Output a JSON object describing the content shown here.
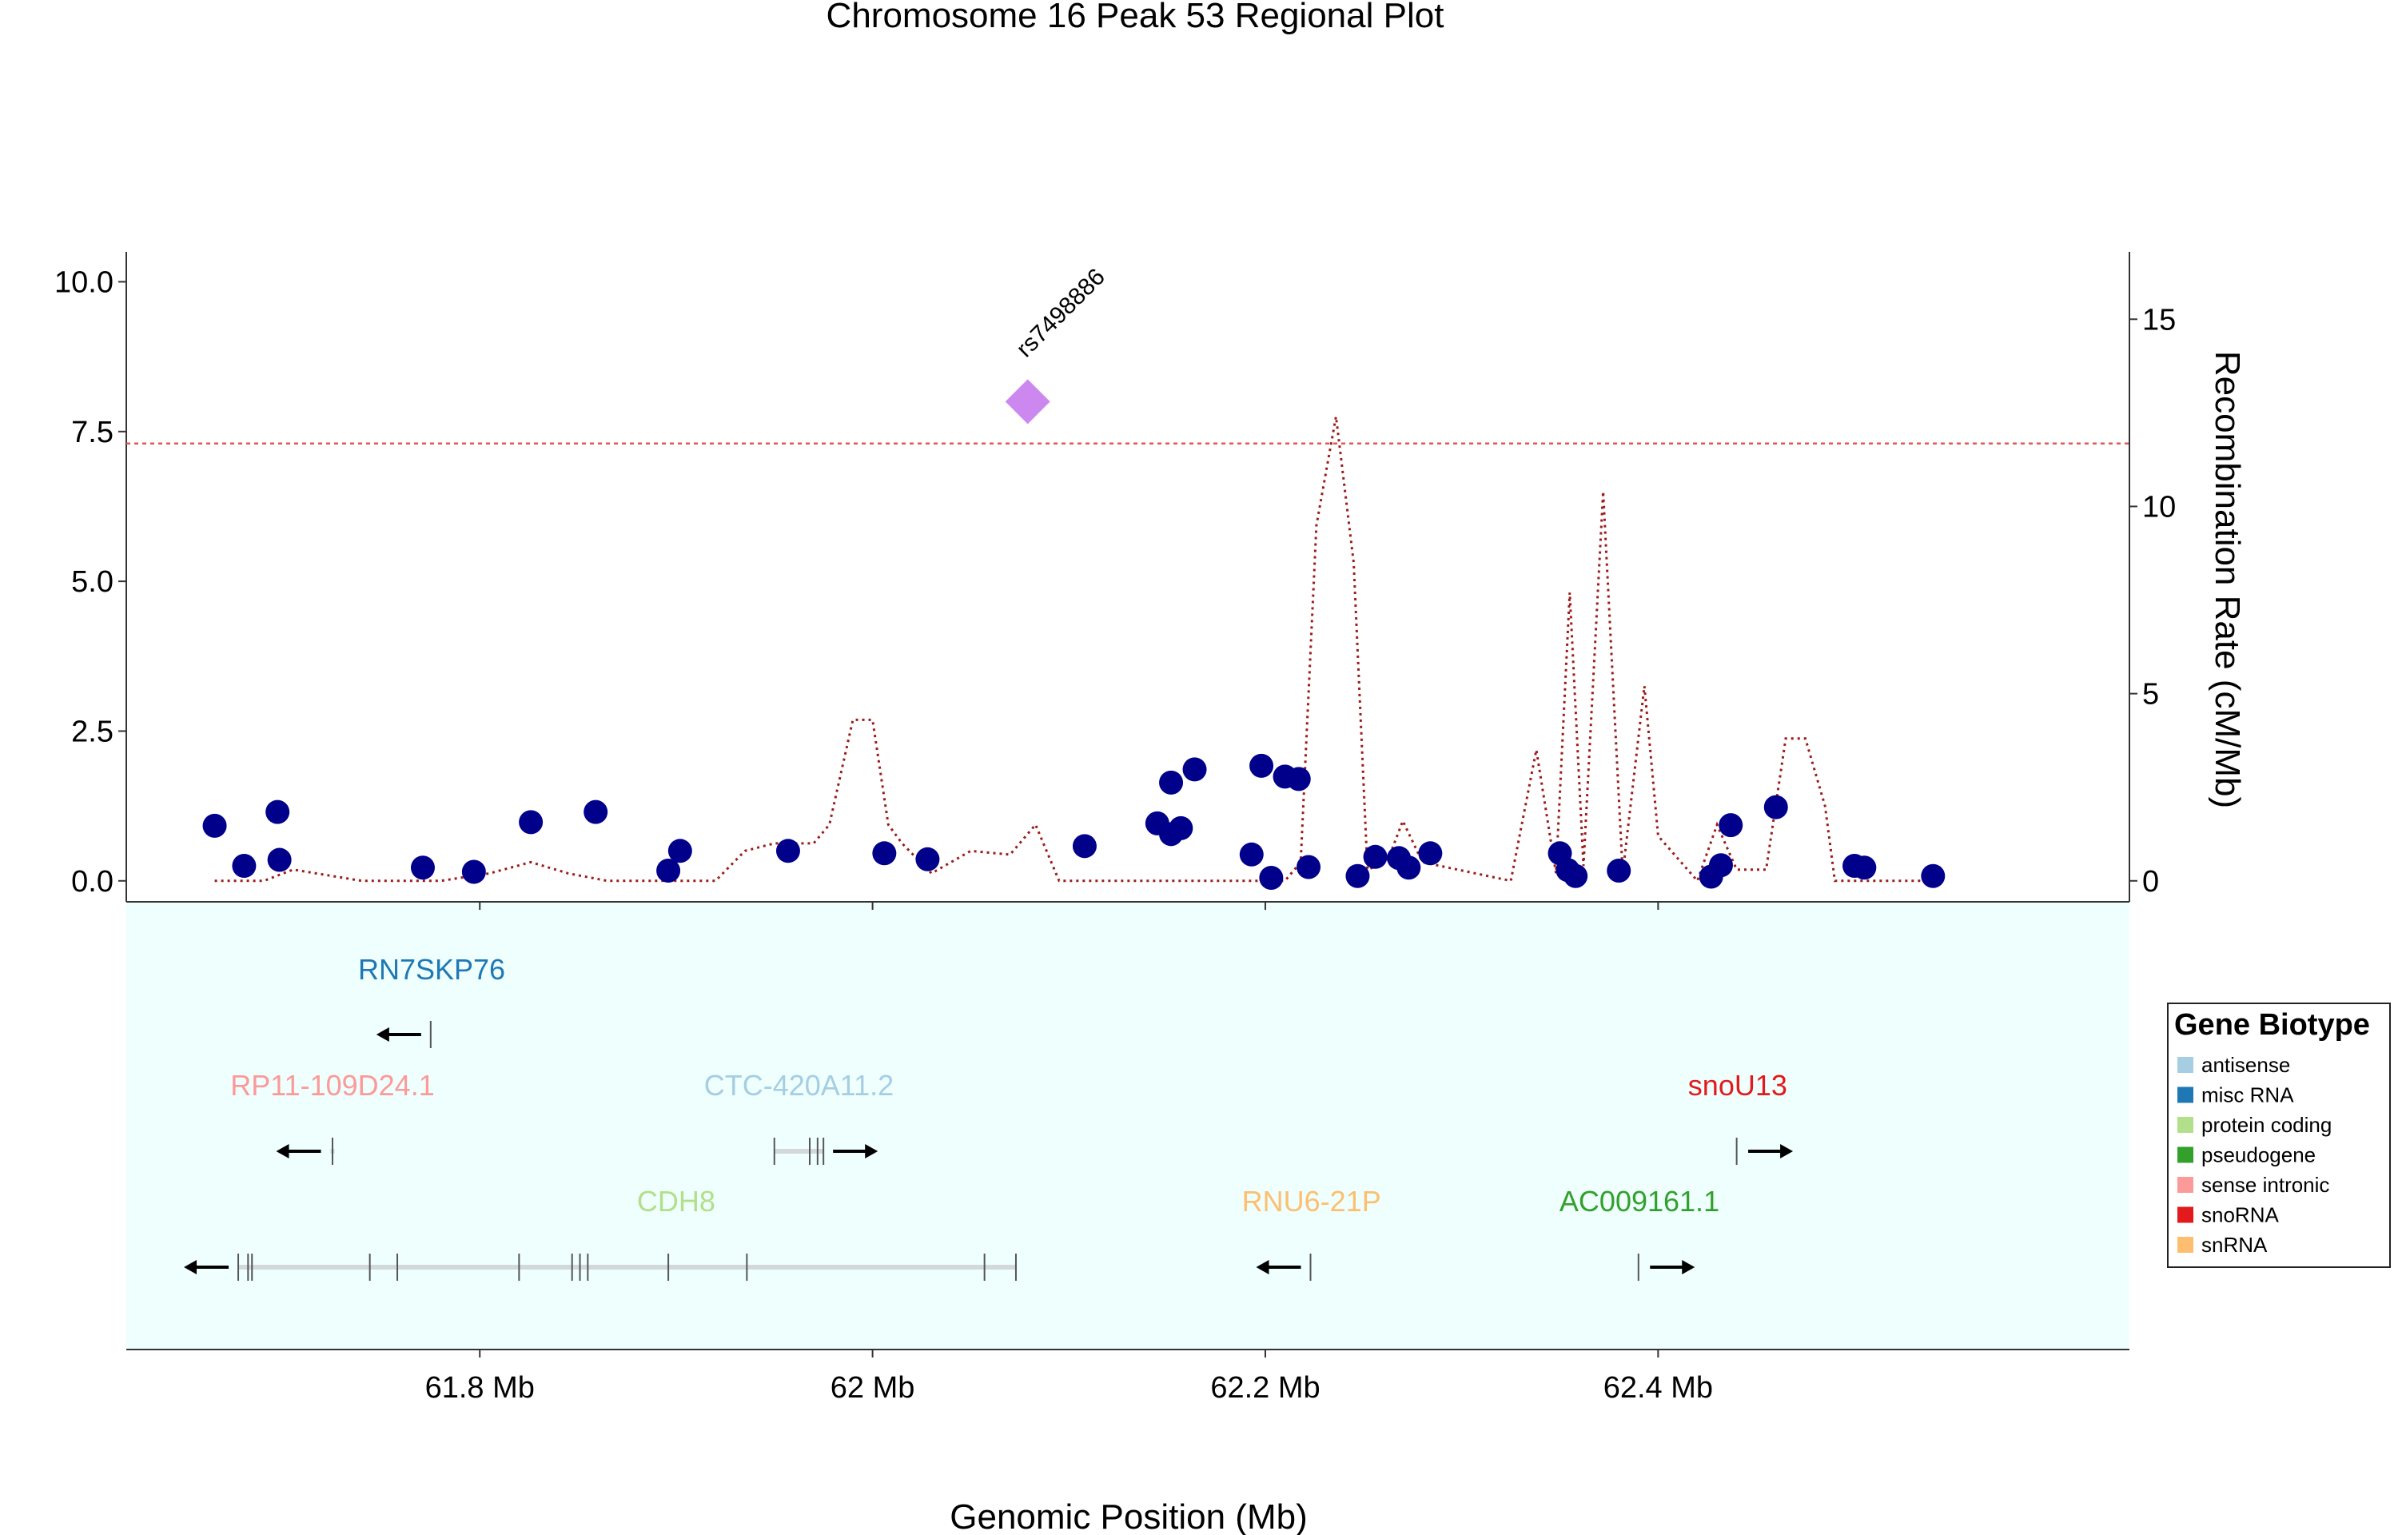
{
  "chart_data": {
    "type": "scatter",
    "title": "Chromosome 16 Peak 53 Regional Plot",
    "xlabel": "Genomic Position (Mb)",
    "ylabel_right": "Recombination Rate (cM/Mb)",
    "xlim": [
      61.62,
      62.64
    ],
    "ylim": [
      -0.35,
      10.5
    ],
    "y2lim": [
      -0.56,
      16.8
    ],
    "yticks": [
      "0.0",
      "2.5",
      "5.0",
      "7.5",
      "10.0"
    ],
    "yticks_values": [
      0,
      2.5,
      5,
      7.5,
      10
    ],
    "y2ticks": [
      "0",
      "5",
      "10",
      "15"
    ],
    "y2ticks_values": [
      0,
      5,
      10,
      15
    ],
    "xticks": [
      "61.8 Mb",
      "62 Mb",
      "62.2 Mb",
      "62.4 Mb"
    ],
    "xticks_values": [
      61.8,
      62.0,
      62.2,
      62.4
    ],
    "significance_line": 7.3,
    "lead_snp": {
      "label": "rs7498886",
      "x": 62.079,
      "y": 8.0
    },
    "points": [
      [
        61.665,
        0.92
      ],
      [
        61.68,
        0.25
      ],
      [
        61.697,
        1.15
      ],
      [
        61.698,
        0.35
      ],
      [
        61.771,
        0.22
      ],
      [
        61.797,
        0.15
      ],
      [
        61.826,
        0.98
      ],
      [
        61.859,
        1.15
      ],
      [
        61.896,
        0.17
      ],
      [
        61.902,
        0.5
      ],
      [
        61.957,
        0.5
      ],
      [
        62.006,
        0.46
      ],
      [
        62.028,
        0.36
      ],
      [
        62.108,
        0.58
      ],
      [
        62.145,
        0.96
      ],
      [
        62.152,
        1.64
      ],
      [
        62.152,
        0.78
      ],
      [
        62.157,
        0.88
      ],
      [
        62.164,
        1.86
      ],
      [
        62.193,
        0.44
      ],
      [
        62.198,
        1.92
      ],
      [
        62.203,
        0.05
      ],
      [
        62.21,
        1.74
      ],
      [
        62.217,
        1.7
      ],
      [
        62.222,
        0.23
      ],
      [
        62.247,
        0.08
      ],
      [
        62.256,
        0.4
      ],
      [
        62.268,
        0.38
      ],
      [
        62.273,
        0.22
      ],
      [
        62.284,
        0.46
      ],
      [
        62.35,
        0.46
      ],
      [
        62.354,
        0.18
      ],
      [
        62.358,
        0.08
      ],
      [
        62.38,
        0.17
      ],
      [
        62.427,
        0.07
      ],
      [
        62.432,
        0.26
      ],
      [
        62.437,
        0.93
      ],
      [
        62.46,
        1.23
      ],
      [
        62.5,
        0.25
      ],
      [
        62.505,
        0.22
      ],
      [
        62.54,
        0.08
      ]
    ],
    "recombination": [
      [
        61.665,
        0
      ],
      [
        61.69,
        0
      ],
      [
        61.705,
        0.3
      ],
      [
        61.74,
        0
      ],
      [
        61.78,
        0
      ],
      [
        61.805,
        0.2
      ],
      [
        61.826,
        0.5
      ],
      [
        61.845,
        0.2
      ],
      [
        61.865,
        0
      ],
      [
        61.92,
        0
      ],
      [
        61.935,
        0.8
      ],
      [
        61.95,
        1.0
      ],
      [
        61.97,
        1.0
      ],
      [
        61.978,
        1.5
      ],
      [
        61.99,
        4.3
      ],
      [
        62.0,
        4.3
      ],
      [
        62.008,
        1.5
      ],
      [
        62.015,
        1.0
      ],
      [
        62.03,
        0.2
      ],
      [
        62.05,
        0.8
      ],
      [
        62.07,
        0.7
      ],
      [
        62.083,
        1.5
      ],
      [
        62.095,
        0
      ],
      [
        62.17,
        0
      ],
      [
        62.21,
        0
      ],
      [
        62.218,
        0.5
      ],
      [
        62.226,
        9.5
      ],
      [
        62.236,
        12.4
      ],
      [
        62.245,
        8.5
      ],
      [
        62.252,
        0.3
      ],
      [
        62.262,
        0.5
      ],
      [
        62.27,
        1.6
      ],
      [
        62.28,
        0.5
      ],
      [
        62.325,
        0
      ],
      [
        62.338,
        3.5
      ],
      [
        62.348,
        0.2
      ],
      [
        62.355,
        7.7
      ],
      [
        62.362,
        0.4
      ],
      [
        62.372,
        10.4
      ],
      [
        62.382,
        0.2
      ],
      [
        62.393,
        5.2
      ],
      [
        62.4,
        1.2
      ],
      [
        62.42,
        0
      ],
      [
        62.43,
        1.5
      ],
      [
        62.44,
        0.3
      ],
      [
        62.455,
        0.3
      ],
      [
        62.465,
        3.8
      ],
      [
        62.475,
        3.8
      ],
      [
        62.485,
        2.0
      ],
      [
        62.49,
        0
      ],
      [
        62.54,
        0
      ]
    ]
  },
  "genes": [
    {
      "name": "RN7SKP76",
      "biotype": "misc RNA",
      "color": "#1f78b4",
      "row": 0,
      "start": 61.775,
      "end": 61.776,
      "strand": "-",
      "exons": [
        61.775
      ]
    },
    {
      "name": "RP11-109D24.1",
      "biotype": "sense intronic",
      "color": "#fb9a99",
      "row": 1,
      "start": 61.724,
      "end": 61.726,
      "strand": "-",
      "exons": [
        61.725
      ]
    },
    {
      "name": "CTC-420A11.2",
      "biotype": "antisense",
      "color": "#a6cee3",
      "row": 1,
      "start": 61.95,
      "end": 61.975,
      "strand": "+",
      "exons": [
        61.95,
        61.968,
        61.972,
        61.975
      ]
    },
    {
      "name": "snoU13",
      "biotype": "snoRNA",
      "color": "#e31a1c",
      "row": 1,
      "start": 62.44,
      "end": 62.441,
      "strand": "+",
      "exons": [
        62.44
      ]
    },
    {
      "name": "CDH8",
      "biotype": "protein coding",
      "color": "#b2df8a",
      "row": 2,
      "start": 61.677,
      "end": 62.073,
      "strand": "-",
      "exons": [
        61.677,
        61.682,
        61.684,
        61.744,
        61.758,
        61.82,
        61.847,
        61.851,
        61.855,
        61.896,
        61.936,
        62.057,
        62.073
      ]
    },
    {
      "name": "RNU6-21P",
      "biotype": "snRNA",
      "color": "#fdbf6f",
      "row": 2,
      "start": 62.223,
      "end": 62.224,
      "strand": "-",
      "exons": [
        62.223
      ]
    },
    {
      "name": "AC009161.1",
      "biotype": "pseudogene",
      "color": "#33a02c",
      "row": 2,
      "start": 62.39,
      "end": 62.391,
      "strand": "+",
      "exons": [
        62.39
      ]
    }
  ],
  "legend": {
    "title": "Gene Biotype",
    "items": [
      {
        "label": "antisense",
        "color": "#a6cee3"
      },
      {
        "label": "misc RNA",
        "color": "#1f78b4"
      },
      {
        "label": "protein coding",
        "color": "#b2df8a"
      },
      {
        "label": "pseudogene",
        "color": "#33a02c"
      },
      {
        "label": "sense intronic",
        "color": "#fb9a99"
      },
      {
        "label": "snoRNA",
        "color": "#e31a1c"
      },
      {
        "label": "snRNA",
        "color": "#fdbf6f"
      }
    ]
  },
  "colors": {
    "point": "#00008b",
    "lead_snp": "#cc88ee",
    "recombination": "#9b1c1c",
    "significance": "#e8554e",
    "gene_panel_bg": "#eefffe",
    "gene_body": "#d3d9db",
    "exon": "#555555"
  }
}
